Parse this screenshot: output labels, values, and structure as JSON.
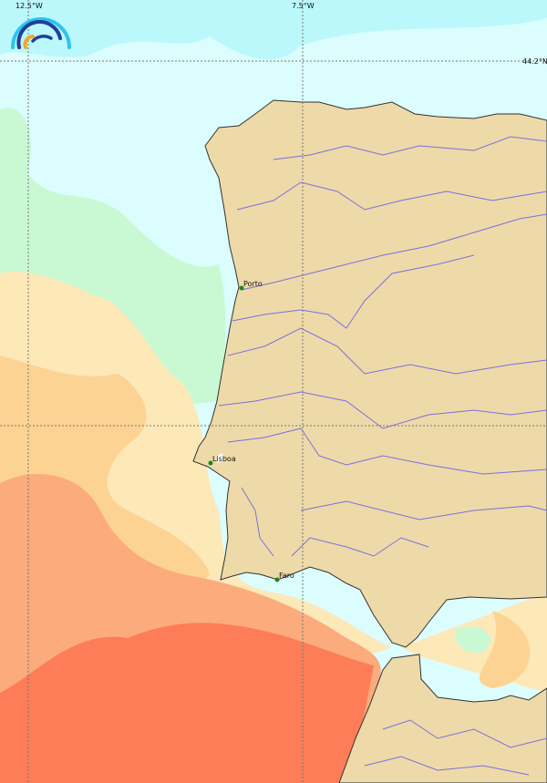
{
  "map": {
    "graticule": {
      "longitudes": [
        "12.5°W",
        "7.5°W"
      ],
      "latitudes": [
        "44.2°N"
      ]
    },
    "cities": [
      {
        "name": "Porto"
      },
      {
        "name": "Lisboa"
      },
      {
        "name": "Faro"
      }
    ],
    "colors": {
      "land": "#eedaa8",
      "coast": "#333333",
      "river": "#7b6fe0",
      "city_marker": "#1a8a1a",
      "sea_coldest": "#dcfdfd",
      "sea_cold": "#baf8fb",
      "sea_mint": "#c9f9d3",
      "sea_cream": "#fde8b8",
      "sea_peach": "#fcd393",
      "sea_orange": "#fbab7c",
      "sea_red": "#fc7d57"
    },
    "logo": "rainbow-arcs-logo"
  }
}
